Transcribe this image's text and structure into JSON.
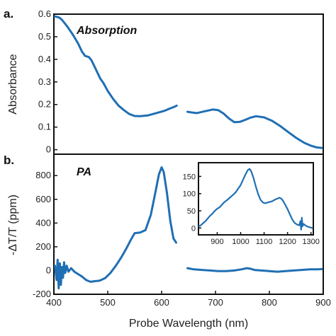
{
  "colors": {
    "line": "#1f6fb4",
    "axis": "#111111"
  },
  "chart_data": [
    {
      "panel": "a.",
      "type": "line",
      "title": "Absorption",
      "xlabel": "",
      "ylabel": "Absorbance",
      "xlim": [
        400,
        900
      ],
      "ylim": [
        -0.02,
        0.6
      ],
      "xticks": [],
      "yticks": [
        0,
        0.1,
        0.2,
        0.3,
        0.4,
        0.5,
        0.6
      ],
      "ytick_labels": [
        "0",
        "0.1",
        "0.2",
        "0.3",
        "0.4",
        "0.5",
        "0.6"
      ],
      "grid": false,
      "series": [
        {
          "segments": [
            [
              [
                402,
                0.59
              ],
              [
                410,
                0.585
              ],
              [
                415,
                0.575
              ],
              [
                425,
                0.545
              ],
              [
                435,
                0.51
              ],
              [
                445,
                0.47
              ],
              [
                452,
                0.435
              ],
              [
                458,
                0.415
              ],
              [
                465,
                0.41
              ],
              [
                470,
                0.395
              ],
              [
                478,
                0.355
              ],
              [
                486,
                0.315
              ],
              [
                492,
                0.295
              ],
              [
                500,
                0.26
              ],
              [
                510,
                0.225
              ],
              [
                520,
                0.195
              ],
              [
                530,
                0.175
              ],
              [
                540,
                0.158
              ],
              [
                550,
                0.149
              ],
              [
                560,
                0.148
              ],
              [
                575,
                0.152
              ],
              [
                590,
                0.162
              ],
              [
                605,
                0.172
              ],
              [
                615,
                0.182
              ],
              [
                624,
                0.19
              ],
              [
                628,
                0.195
              ]
            ],
            [
              [
                648,
                0.168
              ],
              [
                655,
                0.165
              ],
              [
                665,
                0.162
              ],
              [
                680,
                0.17
              ],
              [
                695,
                0.178
              ],
              [
                705,
                0.175
              ],
              [
                715,
                0.16
              ],
              [
                725,
                0.138
              ],
              [
                735,
                0.122
              ],
              [
                745,
                0.123
              ],
              [
                755,
                0.132
              ],
              [
                765,
                0.142
              ],
              [
                775,
                0.148
              ],
              [
                790,
                0.143
              ],
              [
                805,
                0.128
              ],
              [
                820,
                0.105
              ],
              [
                835,
                0.078
              ],
              [
                850,
                0.052
              ],
              [
                865,
                0.03
              ],
              [
                878,
                0.017
              ],
              [
                888,
                0.01
              ],
              [
                897,
                0.008
              ]
            ]
          ]
        }
      ]
    },
    {
      "panel": "b.",
      "type": "line",
      "title": "PA",
      "xlabel": "Probe Wavelength (nm)",
      "ylabel": "-ΔT/T (ppm)",
      "xlim": [
        400,
        900
      ],
      "ylim": [
        -200,
        980
      ],
      "xticks": [
        400,
        500,
        600,
        700,
        800,
        900
      ],
      "xtick_labels": [
        "400",
        "500",
        "600",
        "700",
        "800",
        "900"
      ],
      "yticks": [
        -200,
        0,
        200,
        400,
        600,
        800
      ],
      "ytick_labels": [
        "-200",
        "0",
        "200",
        "400",
        "600",
        "800"
      ],
      "grid": false,
      "series": [
        {
          "segments": [
            [
              [
                402,
                40
              ],
              [
                405,
                -80
              ],
              [
                407,
                90
              ],
              [
                409,
                -150
              ],
              [
                411,
                60
              ],
              [
                413,
                -120
              ],
              [
                415,
                30
              ],
              [
                417,
                -60
              ],
              [
                419,
                70
              ],
              [
                421,
                -20
              ],
              [
                424,
                40
              ],
              [
                427,
                -10
              ],
              [
                432,
                20
              ],
              [
                438,
                -10
              ],
              [
                445,
                -30
              ],
              [
                452,
                -50
              ],
              [
                460,
                -80
              ],
              [
                468,
                -95
              ],
              [
                476,
                -90
              ],
              [
                485,
                -85
              ],
              [
                495,
                -65
              ],
              [
                505,
                -20
              ],
              [
                515,
                40
              ],
              [
                525,
                110
              ],
              [
                535,
                190
              ],
              [
                543,
                260
              ],
              [
                550,
                315
              ],
              [
                560,
                320
              ],
              [
                570,
                340
              ],
              [
                580,
                470
              ],
              [
                588,
                650
              ],
              [
                595,
                810
              ],
              [
                600,
                870
              ],
              [
                604,
                830
              ],
              [
                610,
                650
              ],
              [
                616,
                420
              ],
              [
                622,
                270
              ],
              [
                627,
                235
              ]
            ],
            [
              [
                648,
                20
              ],
              [
                660,
                10
              ],
              [
                675,
                5
              ],
              [
                690,
                0
              ],
              [
                705,
                -5
              ],
              [
                720,
                -5
              ],
              [
                735,
                0
              ],
              [
                748,
                10
              ],
              [
                758,
                20
              ],
              [
                765,
                15
              ],
              [
                772,
                5
              ],
              [
                785,
                0
              ],
              [
                800,
                -5
              ],
              [
                815,
                -10
              ],
              [
                830,
                -5
              ],
              [
                845,
                0
              ],
              [
                860,
                5
              ],
              [
                875,
                10
              ],
              [
                890,
                10
              ],
              [
                897,
                12
              ]
            ]
          ]
        }
      ]
    },
    {
      "panel": "b-inset",
      "type": "line",
      "xlim": [
        820,
        1310
      ],
      "ylim": [
        -20,
        190
      ],
      "xticks": [
        900,
        1000,
        1100,
        1200,
        1300
      ],
      "xtick_labels": [
        "900",
        "1000",
        "1100",
        "1200",
        "1300"
      ],
      "yticks": [
        0,
        50,
        100,
        150
      ],
      "ytick_labels": [
        "0",
        "50",
        "100",
        "150"
      ],
      "grid": false,
      "series": [
        {
          "segments": [
            [
              [
                822,
                5
              ],
              [
                830,
                8
              ],
              [
                840,
                14
              ],
              [
                850,
                20
              ],
              [
                860,
                28
              ],
              [
                870,
                36
              ],
              [
                880,
                42
              ],
              [
                890,
                50
              ],
              [
                900,
                56
              ],
              [
                910,
                60
              ],
              [
                920,
                68
              ],
              [
                930,
                75
              ],
              [
                940,
                80
              ],
              [
                950,
                86
              ],
              [
                960,
                92
              ],
              [
                970,
                98
              ],
              [
                980,
                105
              ],
              [
                990,
                115
              ],
              [
                1000,
                125
              ],
              [
                1010,
                140
              ],
              [
                1020,
                155
              ],
              [
                1030,
                168
              ],
              [
                1038,
                172
              ],
              [
                1045,
                165
              ],
              [
                1055,
                145
              ],
              [
                1065,
                120
              ],
              [
                1075,
                98
              ],
              [
                1085,
                82
              ],
              [
                1095,
                74
              ],
              [
                1105,
                72
              ],
              [
                1115,
                74
              ],
              [
                1125,
                76
              ],
              [
                1135,
                78
              ],
              [
                1145,
                82
              ],
              [
                1155,
                85
              ],
              [
                1165,
                88
              ],
              [
                1172,
                86
              ],
              [
                1180,
                80
              ],
              [
                1190,
                68
              ],
              [
                1200,
                55
              ],
              [
                1210,
                40
              ],
              [
                1220,
                25
              ],
              [
                1230,
                15
              ],
              [
                1240,
                10
              ],
              [
                1250,
                8
              ],
              [
                1255,
                20
              ],
              [
                1258,
                -5
              ],
              [
                1261,
                30
              ],
              [
                1264,
                5
              ],
              [
                1268,
                12
              ],
              [
                1275,
                8
              ],
              [
                1285,
                4
              ],
              [
                1295,
                2
              ],
              [
                1305,
                0
              ]
            ]
          ]
        }
      ]
    }
  ]
}
